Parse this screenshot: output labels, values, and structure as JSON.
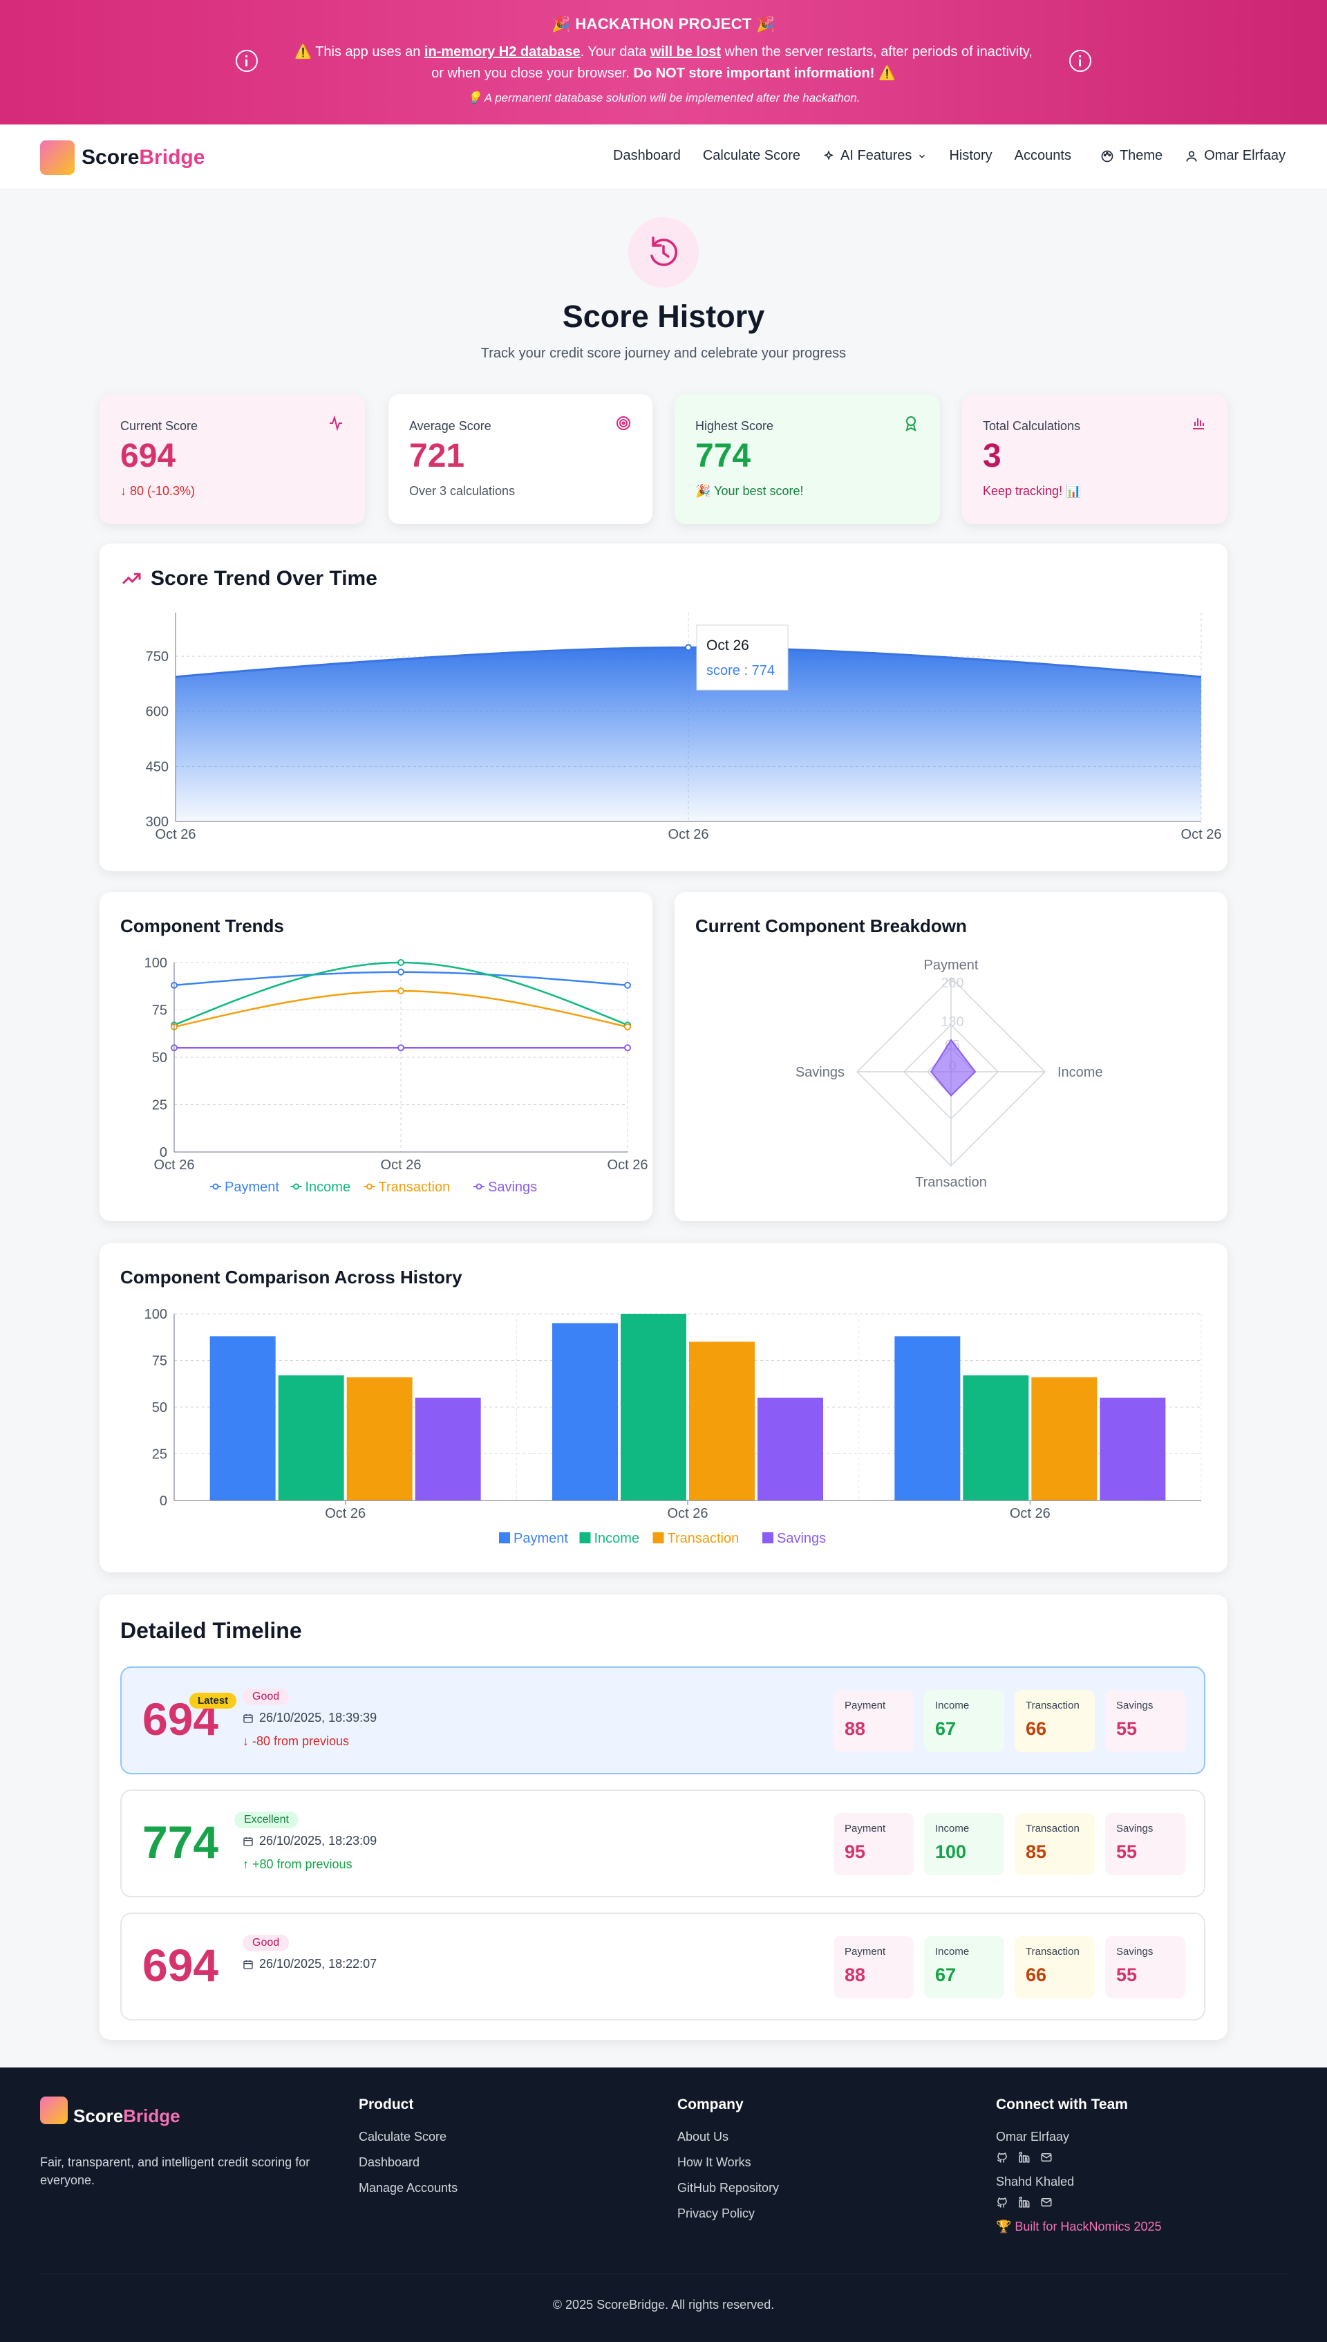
{
  "banner": {
    "title": "🎉 HACKATHON PROJECT 🎉",
    "msg_pre": "⚠️ This app uses an ",
    "msg_db": "in-memory H2 database",
    "msg_mid": ". Your data ",
    "msg_lost": "will be lost",
    "msg_post": " when the server restarts, after periods of inactivity, or when you close your browser. ",
    "msg_warn": "Do NOT store important information!",
    "msg_end": " ⚠️",
    "note": "💡 A permanent database solution will be implemented after the hackathon."
  },
  "nav": {
    "brand_a": "Score",
    "brand_b": "Bridge",
    "links": [
      "Dashboard",
      "Calculate Score",
      "AI Features",
      "History",
      "Accounts",
      "Theme",
      "Omar Elrfaay"
    ]
  },
  "page": {
    "title": "Score History",
    "subtitle": "Track your credit score journey and celebrate your progress"
  },
  "stats": [
    {
      "label": "Current Score",
      "value": "694",
      "footer": "↓ 80 (-10.3%)",
      "icon": "activity-icon"
    },
    {
      "label": "Average Score",
      "value": "721",
      "footer": "Over 3 calculations",
      "icon": "target-icon"
    },
    {
      "label": "Highest Score",
      "value": "774",
      "footer": "🎉 Your best score!",
      "icon": "award-icon"
    },
    {
      "label": "Total Calculations",
      "value": "3",
      "footer": "Keep tracking! 📊",
      "icon": "bar-chart-icon"
    }
  ],
  "colors": {
    "pink": "#d6336c",
    "green": "#16a34a",
    "payment": "#3b82f6",
    "income": "#10b981",
    "transaction": "#f59e0b",
    "savings": "#8b5cf6"
  },
  "chart_data": [
    {
      "type": "area",
      "title": "Score Trend Over Time",
      "x": [
        "Oct 26",
        "Oct 26",
        "Oct 26"
      ],
      "series": [
        {
          "name": "score",
          "values": [
            694,
            774,
            694
          ]
        }
      ],
      "ylim": [
        300,
        850
      ],
      "yticks": [
        300,
        450,
        600,
        750
      ],
      "tooltip": {
        "title": "Oct 26",
        "text": "score : 774"
      }
    },
    {
      "type": "line",
      "title": "Component Trends",
      "x": [
        "Oct 26",
        "Oct 26",
        "Oct 26"
      ],
      "ylim": [
        0,
        100
      ],
      "yticks": [
        0,
        25,
        50,
        75,
        100
      ],
      "series": [
        {
          "name": "Payment",
          "values": [
            88,
            95,
            88
          ]
        },
        {
          "name": "Income",
          "values": [
            67,
            100,
            67
          ]
        },
        {
          "name": "Transaction",
          "values": [
            66,
            85,
            66
          ]
        },
        {
          "name": "Savings",
          "values": [
            55,
            55,
            55
          ]
        }
      ]
    },
    {
      "type": "radar",
      "title": "Current Component Breakdown",
      "axes": [
        "Payment",
        "Income",
        "Transaction",
        "Savings"
      ],
      "values": [
        88,
        67,
        66,
        55
      ],
      "rticks": [
        "0",
        "65",
        "130",
        "260"
      ],
      "rmax": 260
    },
    {
      "type": "bar",
      "title": "Component Comparison Across History",
      "categories": [
        "Oct 26",
        "Oct 26",
        "Oct 26"
      ],
      "ylim": [
        0,
        100
      ],
      "yticks": [
        0,
        25,
        50,
        75,
        100
      ],
      "series": [
        {
          "name": "Payment",
          "values": [
            88,
            95,
            88
          ]
        },
        {
          "name": "Income",
          "values": [
            67,
            100,
            67
          ]
        },
        {
          "name": "Transaction",
          "values": [
            66,
            85,
            66
          ]
        },
        {
          "name": "Savings",
          "values": [
            55,
            55,
            55
          ]
        }
      ]
    }
  ],
  "timeline": {
    "title": "Detailed Timeline",
    "latest_label": "Latest",
    "items": [
      {
        "score": "694",
        "rating": "Good",
        "date": "26/10/2025, 18:39:39",
        "diff": "↓ -80 from previous",
        "components": [
          "88",
          "67",
          "66",
          "55"
        ]
      },
      {
        "score": "774",
        "rating": "Excellent",
        "date": "26/10/2025, 18:23:09",
        "diff": "↑ +80 from previous",
        "components": [
          "95",
          "100",
          "85",
          "55"
        ]
      },
      {
        "score": "694",
        "rating": "Good",
        "date": "26/10/2025, 18:22:07",
        "diff": "",
        "components": [
          "88",
          "67",
          "66",
          "55"
        ]
      }
    ],
    "component_labels": [
      "Payment",
      "Income",
      "Transaction",
      "Savings"
    ]
  },
  "footer": {
    "tagline": "Fair, transparent, and intelligent credit scoring for everyone.",
    "product_title": "Product",
    "product": [
      "Calculate Score",
      "Dashboard",
      "Manage Accounts"
    ],
    "company_title": "Company",
    "company": [
      "About Us",
      "How It Works",
      "GitHub Repository",
      "Privacy Policy"
    ],
    "team_title": "Connect with Team",
    "team": [
      "Omar Elrfaay",
      "Shahd Khaled"
    ],
    "built": "🏆 Built for HackNomics 2025",
    "copyright": "© 2025 ScoreBridge. All rights reserved."
  }
}
